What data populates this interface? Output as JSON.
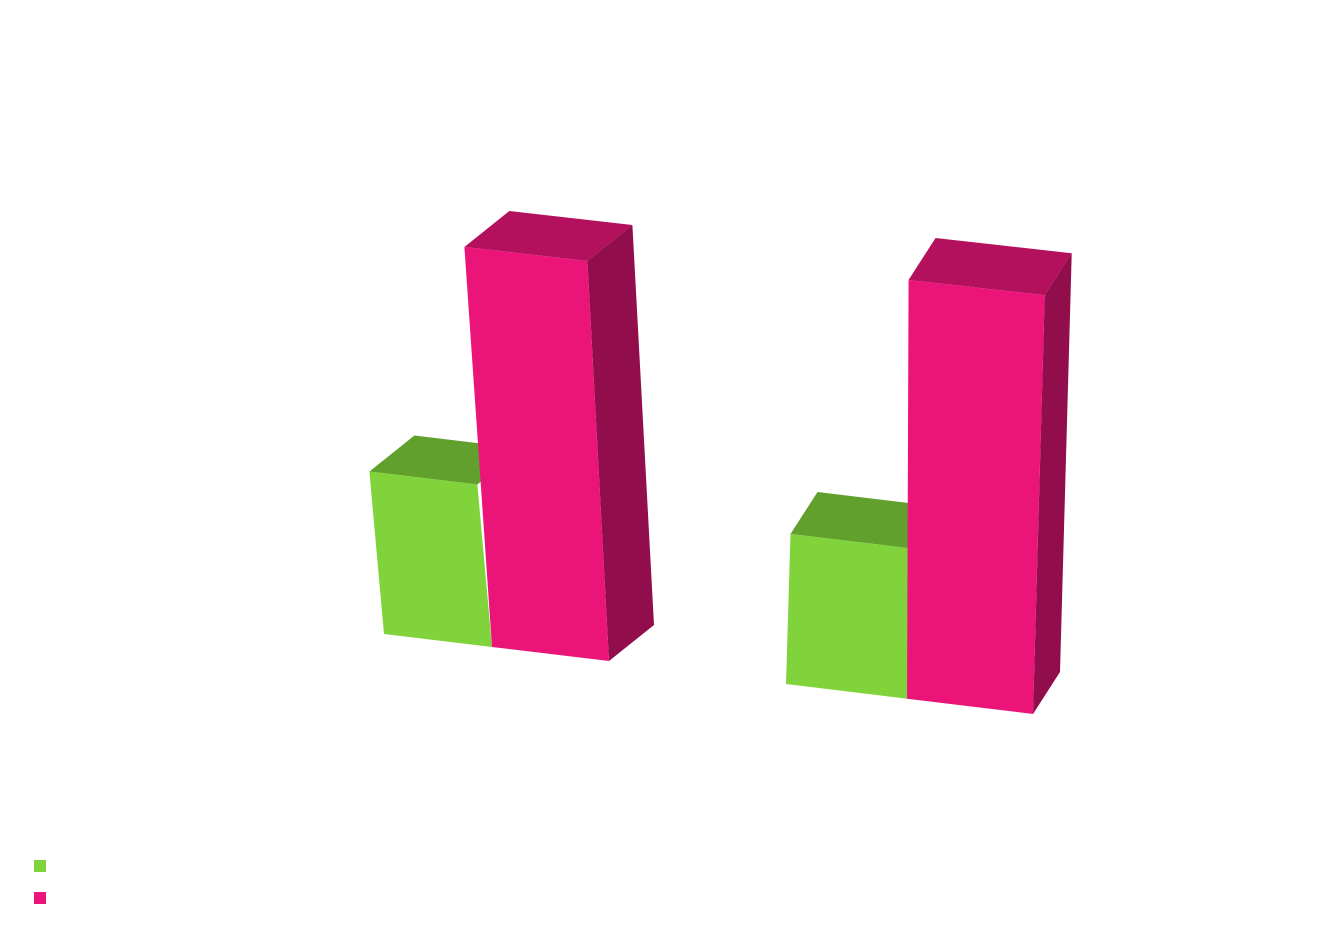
{
  "chart_data": {
    "type": "bar",
    "style": "3d-clustered-column",
    "categories": [
      "",
      ""
    ],
    "series": [
      {
        "name": "",
        "color": "#80d33b",
        "values": [
          26,
          24
        ]
      },
      {
        "name": "",
        "color": "#eb157a",
        "values": [
          64,
          67
        ]
      }
    ],
    "ylim": [
      0,
      70
    ],
    "grid": false,
    "axes_visible": false,
    "legend": "bottom-left"
  }
}
